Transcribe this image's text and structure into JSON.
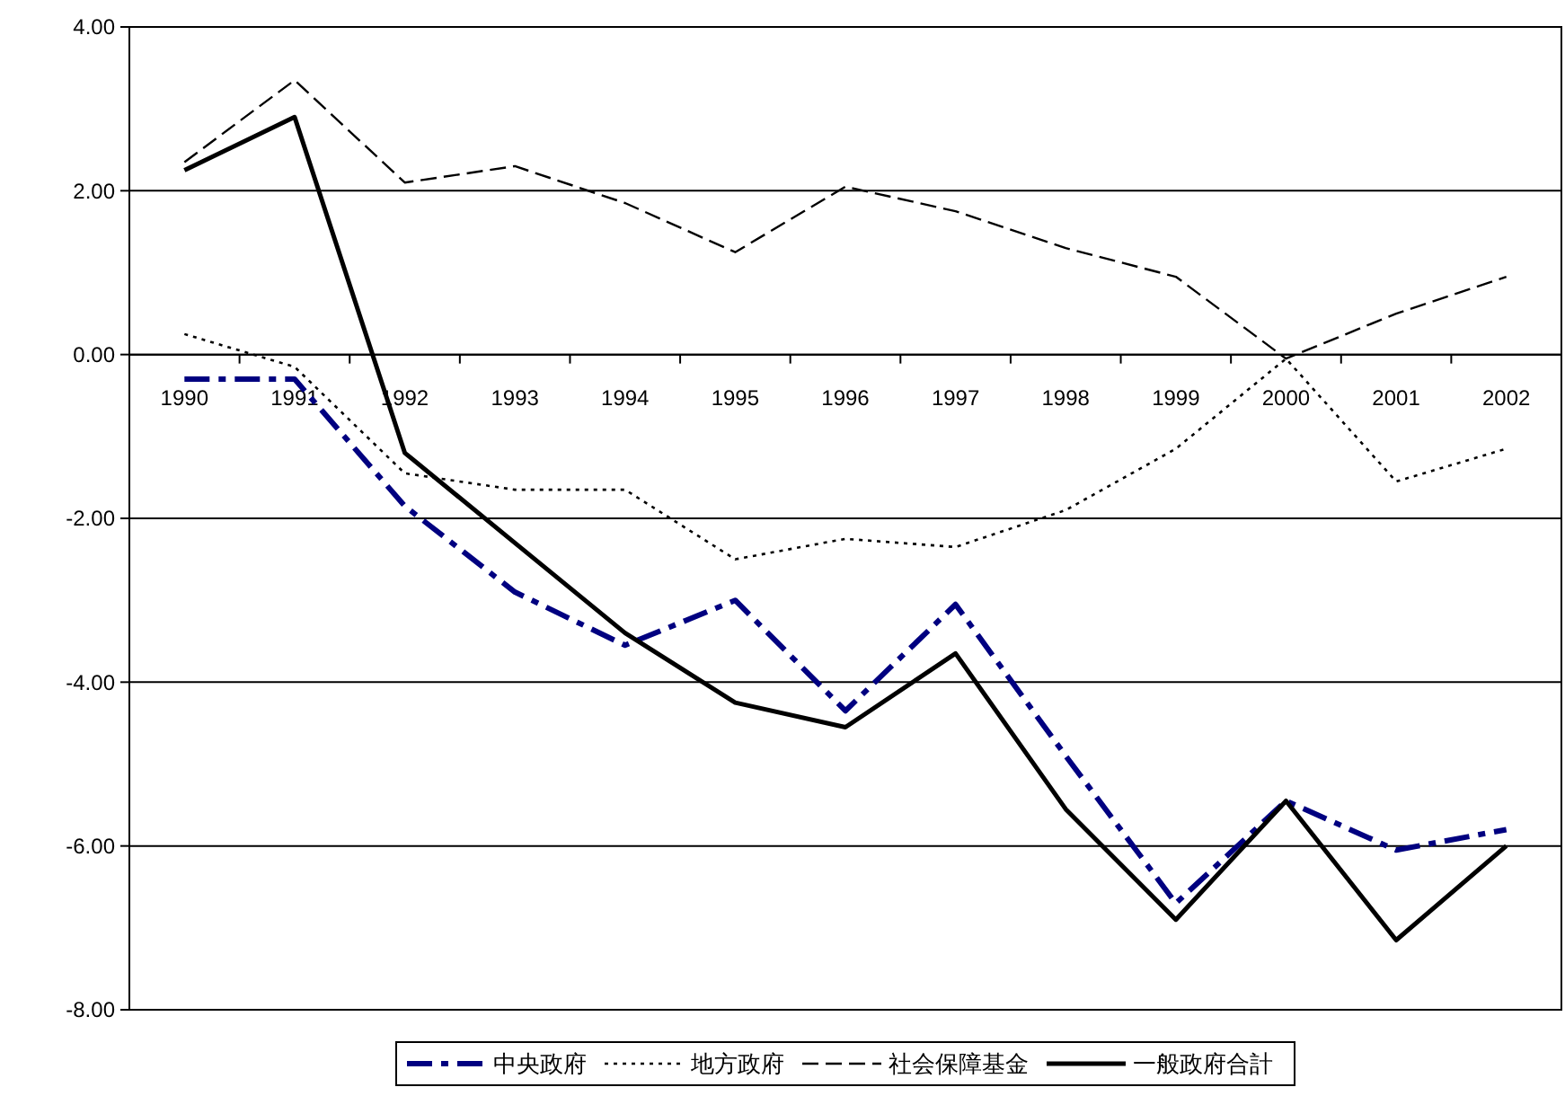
{
  "chart_data": {
    "type": "line",
    "categories": [
      "1990",
      "1991",
      "1992",
      "1993",
      "1994",
      "1995",
      "1996",
      "1997",
      "1998",
      "1999",
      "2000",
      "2001",
      "2002"
    ],
    "ylim": [
      -8,
      4
    ],
    "yticks": [
      {
        "value": -8,
        "label": "-8.00"
      },
      {
        "value": -6,
        "label": "-6.00"
      },
      {
        "value": -4,
        "label": "-4.00"
      },
      {
        "value": -2,
        "label": "-2.00"
      },
      {
        "value": 0,
        "label": "0.00"
      },
      {
        "value": 2,
        "label": "2.00"
      },
      {
        "value": 4,
        "label": "4.00"
      }
    ],
    "grid": "y",
    "legend": "bottom",
    "marker": "none",
    "series": [
      {
        "name": "中央政府",
        "color": "#000080",
        "line_style": "dashdot",
        "values": [
          -0.3,
          -0.3,
          -1.85,
          -2.9,
          -3.55,
          -3.0,
          -4.35,
          -3.05,
          -4.9,
          -6.7,
          -5.45,
          -6.05,
          -5.8
        ]
      },
      {
        "name": "地方政府",
        "color": "#000000",
        "line_style": "dotted",
        "values": [
          0.25,
          -0.15,
          -1.45,
          -1.65,
          -1.65,
          -2.5,
          -2.25,
          -2.35,
          -1.9,
          -1.15,
          -0.05,
          -1.55,
          -1.15
        ]
      },
      {
        "name": "社会保障基金",
        "color": "#000000",
        "line_style": "dashed",
        "values": [
          2.35,
          3.35,
          2.1,
          2.3,
          1.85,
          1.25,
          2.05,
          1.75,
          1.3,
          0.95,
          -0.05,
          0.5,
          0.95
        ]
      },
      {
        "name": "一般政府合計",
        "color": "#000000",
        "line_style": "solid",
        "values": [
          2.25,
          2.9,
          -1.2,
          -2.3,
          -3.4,
          -4.25,
          -4.55,
          -3.65,
          -5.55,
          -6.9,
          -5.45,
          -7.15,
          -6.0
        ]
      }
    ]
  }
}
